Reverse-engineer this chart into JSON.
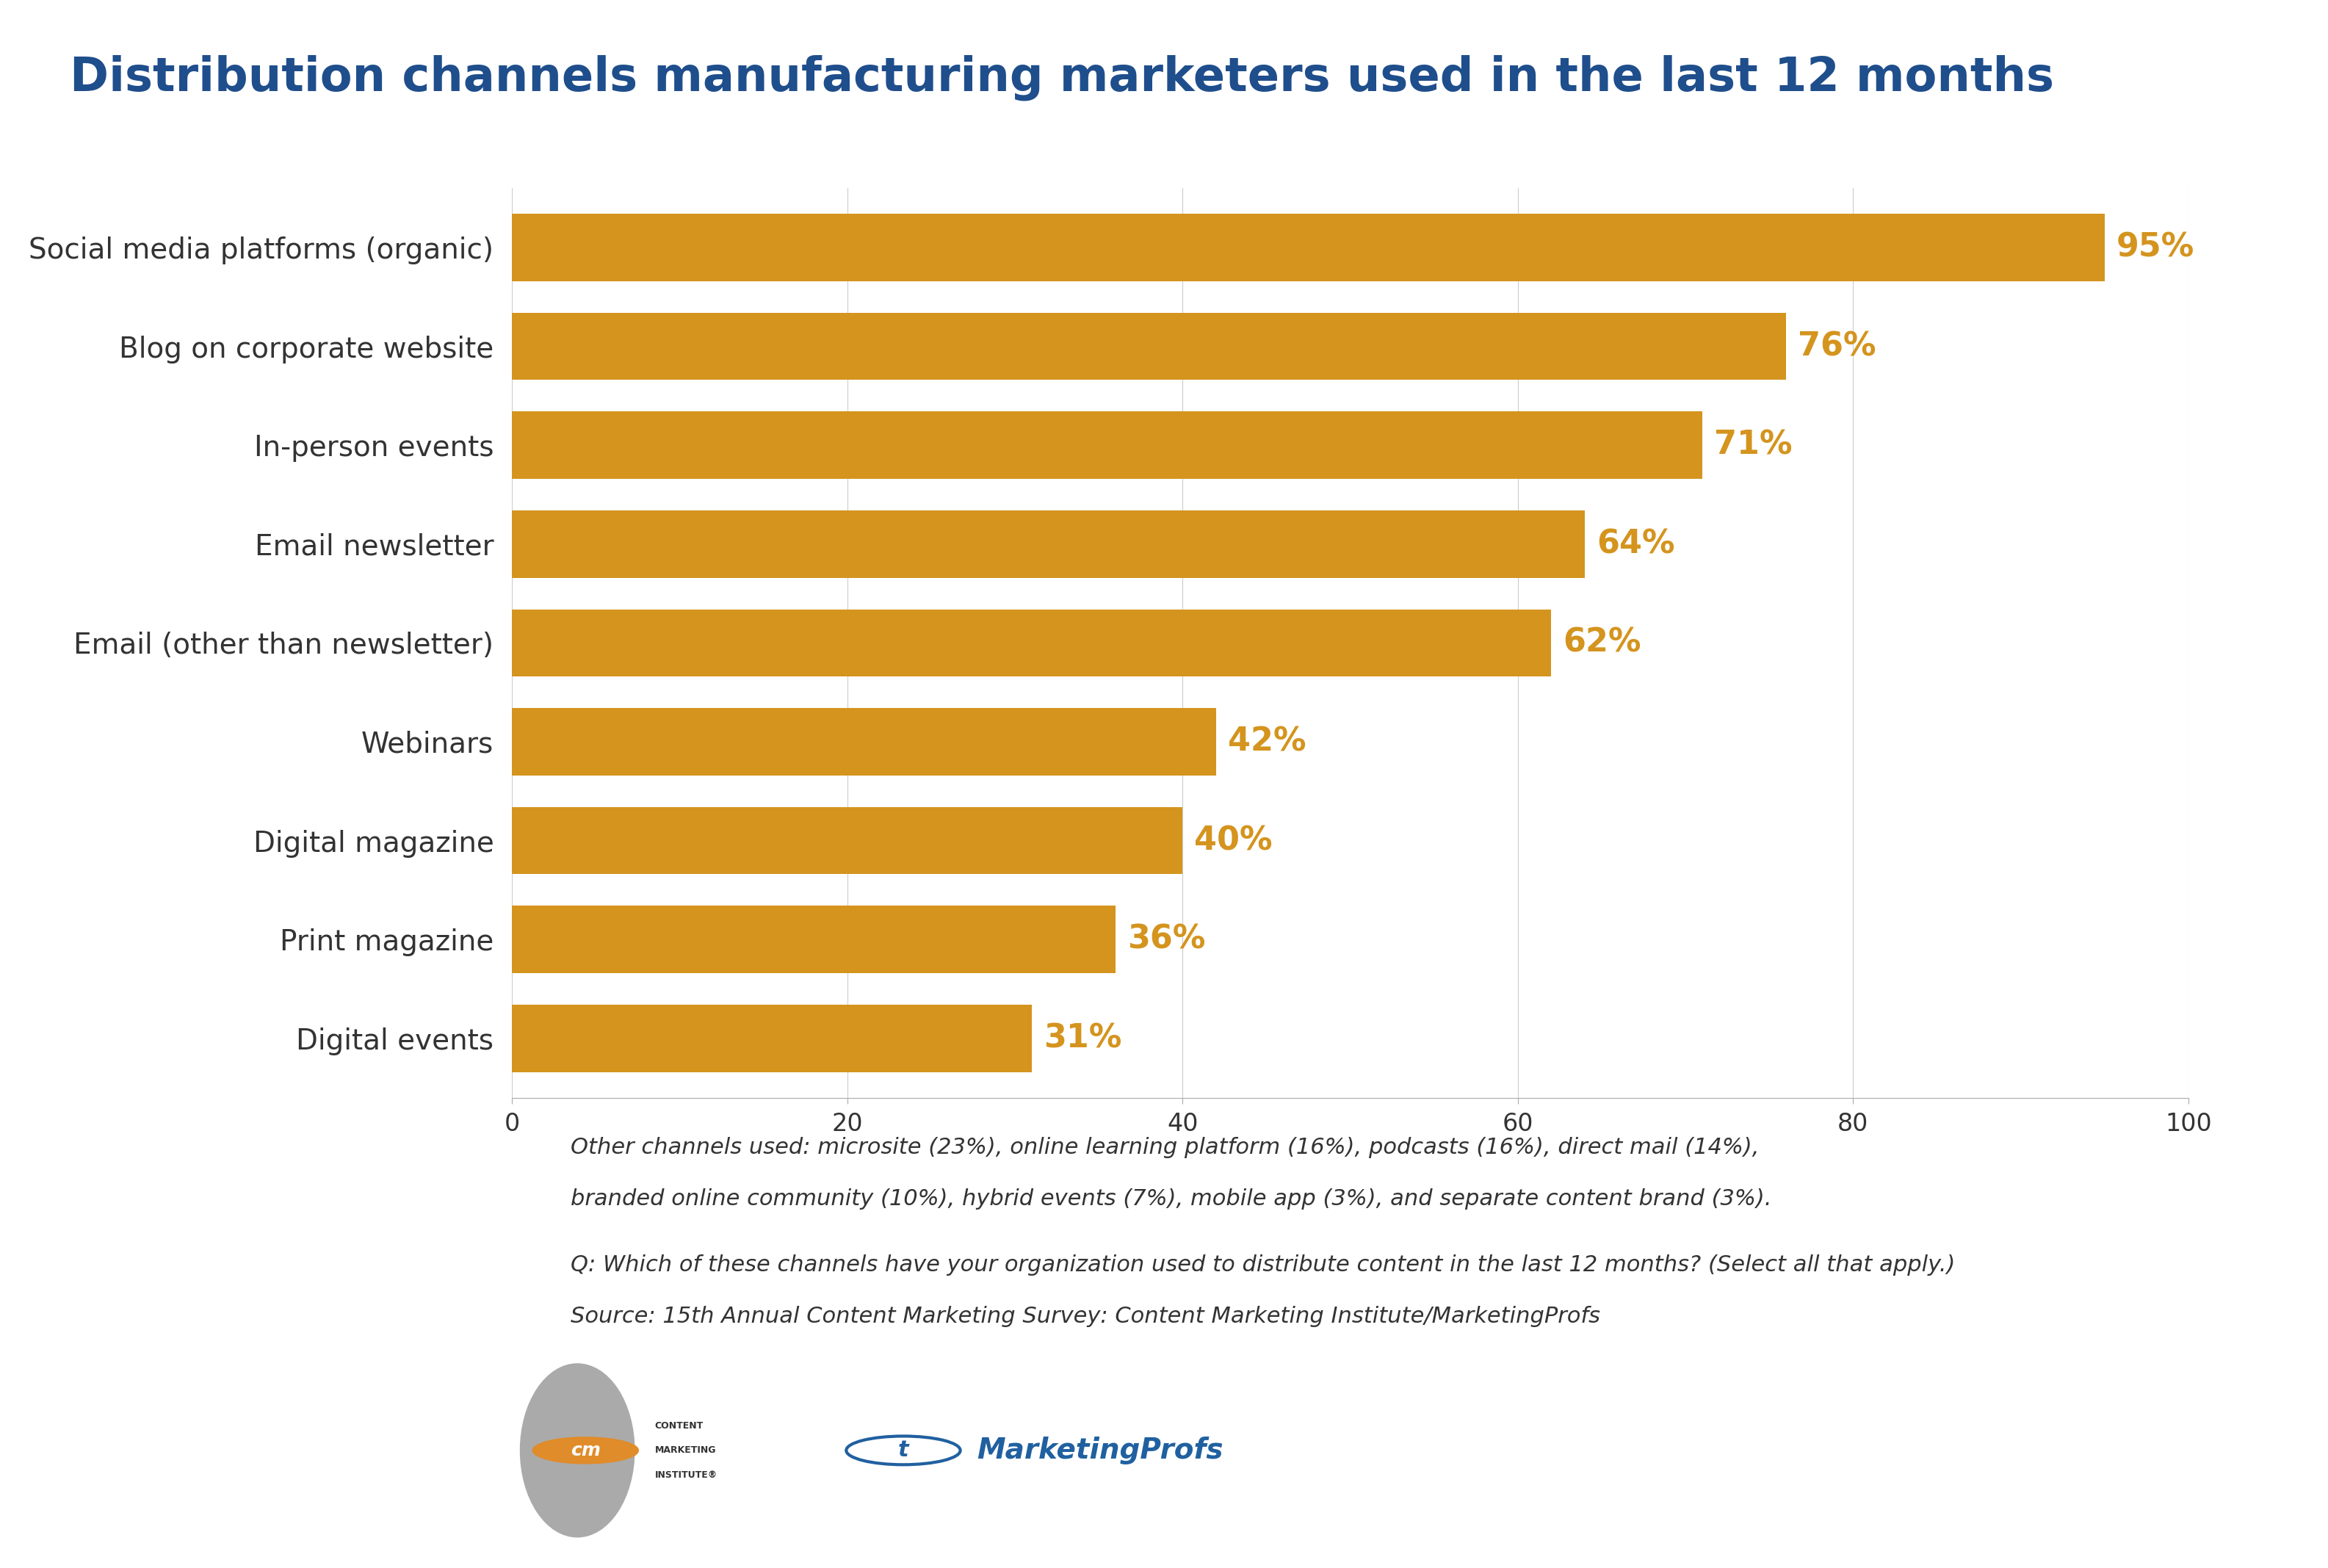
{
  "title": "Distribution channels manufacturing marketers used in the last 12 months",
  "title_color": "#1f4e8c",
  "title_fontsize": 46,
  "background_color": "#ffffff",
  "bar_color": "#d4941e",
  "label_color": "#d4941e",
  "categories": [
    "Social media platforms (organic)",
    "Blog on corporate website",
    "In-person events",
    "Email newsletter",
    "Email (other than newsletter)",
    "Webinars",
    "Digital magazine",
    "Print magazine",
    "Digital events"
  ],
  "values": [
    95,
    76,
    71,
    64,
    62,
    42,
    40,
    36,
    31
  ],
  "xlim": [
    0,
    100
  ],
  "xticks": [
    0,
    20,
    40,
    60,
    80,
    100
  ],
  "ylabel_fontsize": 28,
  "value_label_fontsize": 32,
  "footnote1": "Other channels used: microsite (23%), online learning platform (16%), podcasts (16%), direct mail (14%),",
  "footnote2": "branded online community (10%), hybrid events (7%), mobile app (3%), and separate content brand (3%).",
  "footnote3": "Q: Which of these channels have your organization used to distribute content in the last 12 months? (Select all that apply.)",
  "footnote4": "Source: 15th Annual Content Marketing Survey: Content Marketing Institute/MarketingProfs",
  "footnote_fontsize": 22,
  "tick_fontsize": 24,
  "bar_height": 0.68
}
